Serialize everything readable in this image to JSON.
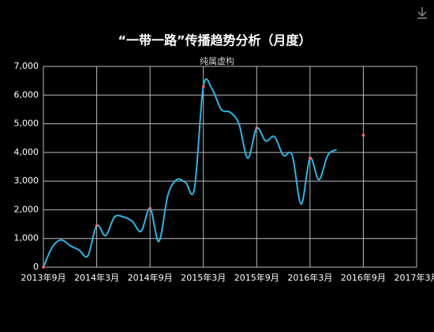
{
  "chart_data": {
    "type": "line",
    "title": "“一带一路”传播趋势分析（月度）",
    "subtitle": "纯属虚构",
    "x": [
      "2013-09",
      "2013-10",
      "2013-11",
      "2013-12",
      "2014-01",
      "2014-02",
      "2014-03",
      "2014-04",
      "2014-05",
      "2014-06",
      "2014-07",
      "2014-08",
      "2014-09",
      "2014-10",
      "2014-11",
      "2014-12",
      "2015-01",
      "2015-02",
      "2015-03",
      "2015-04",
      "2015-05",
      "2015-06",
      "2015-07",
      "2015-08",
      "2015-09",
      "2015-10",
      "2015-11",
      "2015-12",
      "2016-01",
      "2016-02",
      "2016-03",
      "2016-04",
      "2016-05",
      "2016-06",
      "2016-07",
      "2016-08",
      "2016-09"
    ],
    "series": [
      {
        "color": "#29b6e8",
        "values": [
          0,
          700,
          950,
          750,
          600,
          400,
          1450,
          1100,
          1750,
          1750,
          1600,
          1250,
          2050,
          900,
          2500,
          3050,
          2950,
          2750,
          6300,
          6200,
          5500,
          5400,
          5000,
          3800,
          4850,
          4400,
          4550,
          3900,
          3900,
          2200,
          3800,
          3050,
          3900,
          4100,
          null,
          null,
          4600
        ]
      }
    ],
    "marker_color": "#ff6b6b",
    "xlim": [
      "2013-09",
      "2017-03"
    ],
    "xticks": [
      {
        "value": "2013-09",
        "label": "2013年9月"
      },
      {
        "value": "2014-03",
        "label": "2014年3月"
      },
      {
        "value": "2014-09",
        "label": "2014年9月"
      },
      {
        "value": "2015-03",
        "label": "2015年3月"
      },
      {
        "value": "2015-09",
        "label": "2015年9月"
      },
      {
        "value": "2016-03",
        "label": "2016年3月"
      },
      {
        "value": "2016-09",
        "label": "2016年9月"
      },
      {
        "value": "2017-03",
        "label": "2017年3月"
      }
    ],
    "ylim": [
      0,
      7000
    ],
    "yticks": [
      0,
      {
        "value": 1000,
        "label": "1,000"
      },
      {
        "value": 2000,
        "label": "2,000"
      },
      {
        "value": 3000,
        "label": "3,000"
      },
      {
        "value": 4000,
        "label": "4,000"
      },
      {
        "value": 5000,
        "label": "5,000"
      },
      {
        "value": 6000,
        "label": "6,000"
      },
      {
        "value": 7000,
        "label": "7,000"
      }
    ],
    "grid": true
  }
}
